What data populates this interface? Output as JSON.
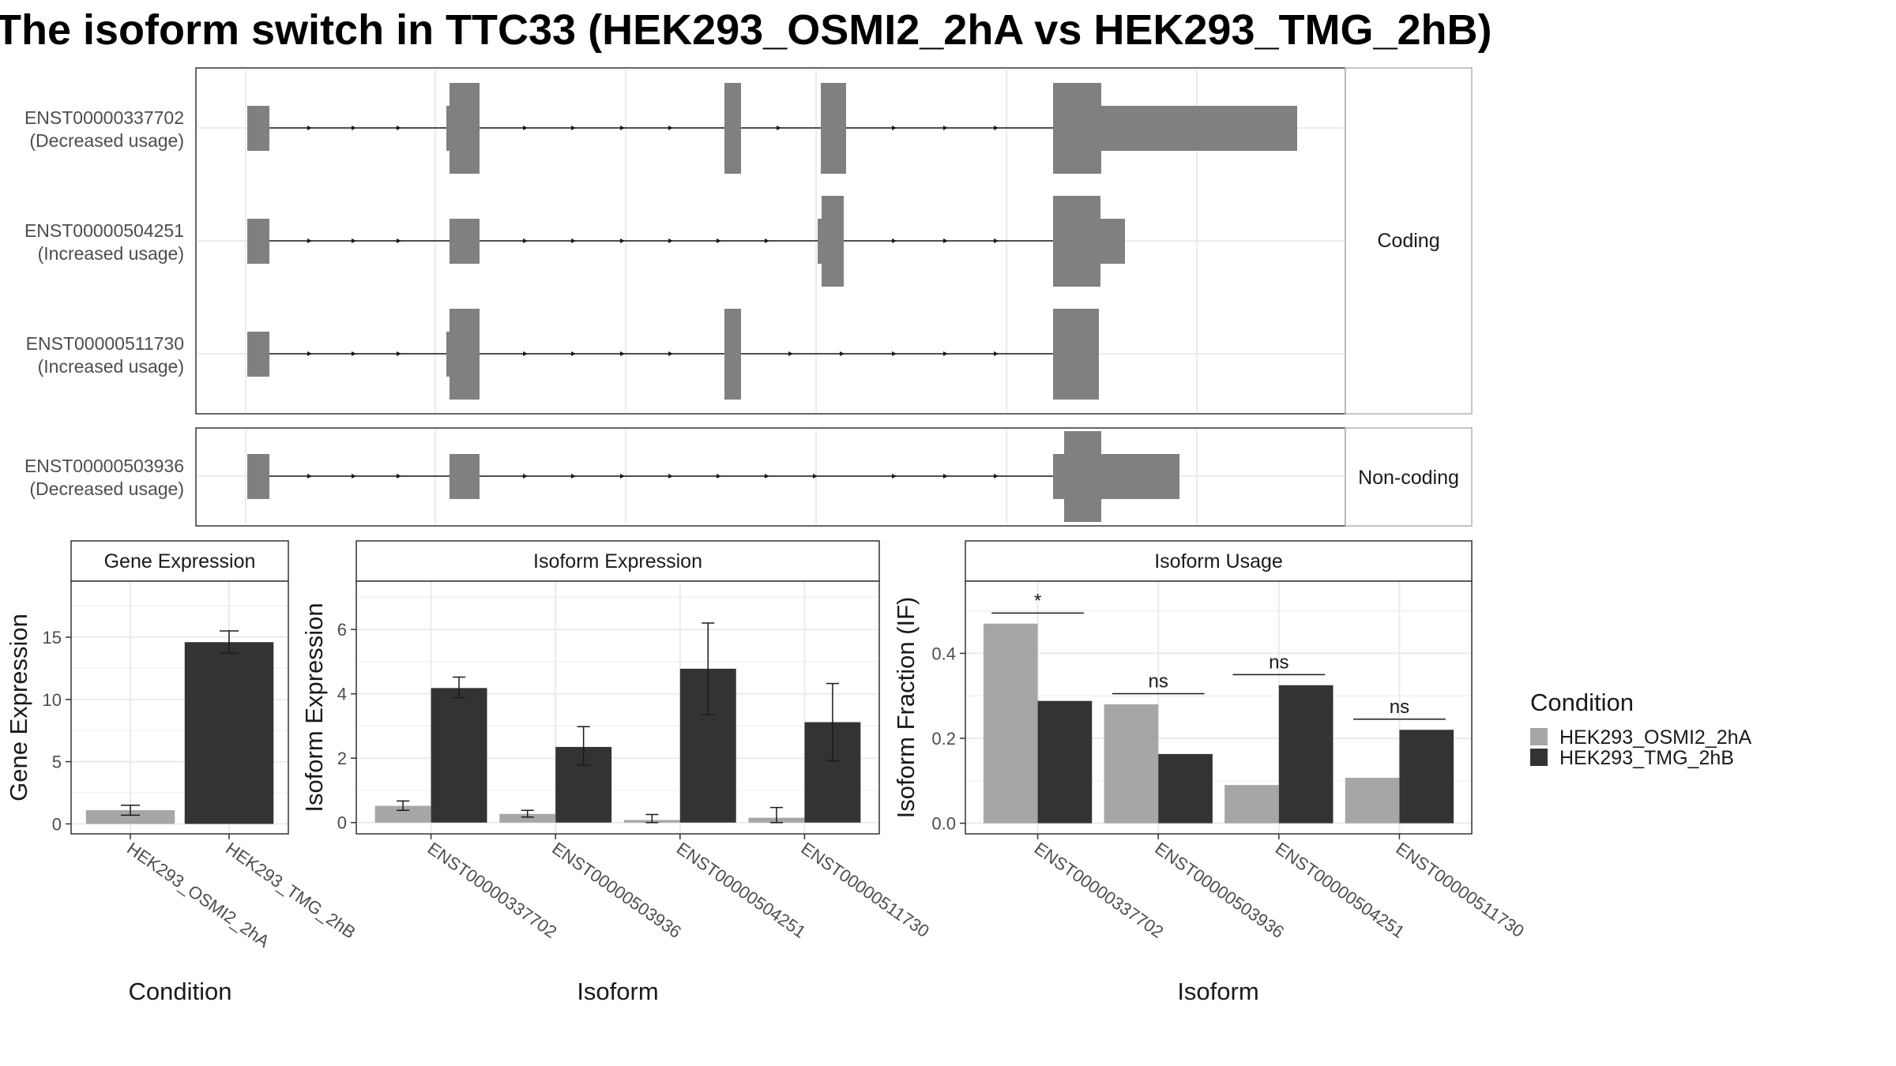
{
  "title": "The isoform switch in TTC33 (HEK293_OSMI2_2hA vs HEK293_TMG_2hB)",
  "colors": {
    "condition_a": "#a6a6a6",
    "condition_b": "#333333",
    "exon": "#808080",
    "panel_border": "#333333",
    "strip_fill": "#ffffff",
    "grid": "#ebebeb"
  },
  "isoform_structure": {
    "groups": [
      {
        "label": "Coding",
        "isoforms": [
          {
            "id": "ENST00000337702",
            "usage": "(Decreased usage)"
          },
          {
            "id": "ENST00000504251",
            "usage": "(Increased usage)"
          },
          {
            "id": "ENST00000511730",
            "usage": "(Increased usage)"
          }
        ]
      },
      {
        "label": "Non-coding",
        "isoforms": [
          {
            "id": "ENST00000503936",
            "usage": "(Decreased usage)"
          }
        ]
      }
    ]
  },
  "legend": {
    "title": "Condition",
    "items": [
      {
        "label": "HEK293_OSMI2_2hA",
        "color": "#a6a6a6"
      },
      {
        "label": "HEK293_TMG_2hB",
        "color": "#333333"
      }
    ]
  },
  "chart_data": [
    {
      "type": "bar",
      "title": "Gene Expression",
      "xlabel": "Condition",
      "ylabel": "Gene Expression",
      "ylim": [
        -0.8,
        19.5
      ],
      "yticks": [
        0,
        5,
        10,
        15
      ],
      "categories": [
        "HEK293_OSMI2_2hA",
        "HEK293_TMG_2hB"
      ],
      "values": [
        1.1,
        14.6
      ],
      "errors": [
        [
          0.7,
          1.5
        ],
        [
          13.7,
          15.5
        ]
      ],
      "colors": [
        "#a6a6a6",
        "#333333"
      ]
    },
    {
      "type": "bar",
      "title": "Isoform Expression",
      "xlabel": "Isoform",
      "ylabel": "Isoform Expression",
      "ylim": [
        -0.35,
        7.5
      ],
      "yticks": [
        0,
        2,
        4,
        6
      ],
      "categories": [
        "ENST00000337702",
        "ENST00000503936",
        "ENST00000504251",
        "ENST00000511730"
      ],
      "series": [
        {
          "name": "HEK293_OSMI2_2hA",
          "values": [
            0.52,
            0.27,
            0.08,
            0.15
          ],
          "errors": [
            [
              0.38,
              0.67
            ],
            [
              0.17,
              0.38
            ],
            [
              0.0,
              0.25
            ],
            [
              0.0,
              0.47
            ]
          ]
        },
        {
          "name": "HEK293_TMG_2hB",
          "values": [
            4.18,
            2.35,
            4.78,
            3.12
          ],
          "errors": [
            [
              3.88,
              4.52
            ],
            [
              1.78,
              2.98
            ],
            [
              3.35,
              6.2
            ],
            [
              1.92,
              4.32
            ]
          ]
        }
      ]
    },
    {
      "type": "bar",
      "title": "Isoform Usage",
      "xlabel": "Isoform",
      "ylabel": "Isoform Fraction (IF)",
      "ylim": [
        -0.025,
        0.57
      ],
      "yticks": [
        0.0,
        0.2,
        0.4
      ],
      "categories": [
        "ENST00000337702",
        "ENST00000503936",
        "ENST00000504251",
        "ENST00000511730"
      ],
      "series": [
        {
          "name": "HEK293_OSMI2_2hA",
          "values": [
            0.47,
            0.28,
            0.09,
            0.107
          ]
        },
        {
          "name": "HEK293_TMG_2hB",
          "values": [
            0.288,
            0.163,
            0.325,
            0.22
          ]
        }
      ],
      "significance": [
        {
          "label": "*",
          "y": 0.495
        },
        {
          "label": "ns",
          "y": 0.305
        },
        {
          "label": "ns",
          "y": 0.35
        },
        {
          "label": "ns",
          "y": 0.245
        }
      ]
    }
  ]
}
